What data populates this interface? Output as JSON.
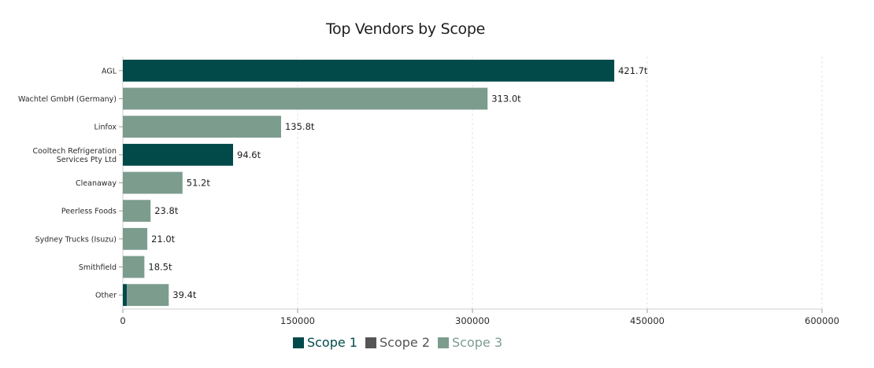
{
  "chart_data": {
    "type": "bar",
    "orientation": "horizontal",
    "stacked": true,
    "title": "Top Vendors by Scope",
    "categories": [
      "AGL",
      "Wachtel GmbH (Germany)",
      "Linfox",
      "Cooltech Refrigeration Services Pty Ltd",
      "Cleanaway",
      "Peerless Foods",
      "Sydney Trucks (Isuzu)",
      "Smithfield",
      "Other"
    ],
    "category_label_lines": [
      [
        "AGL"
      ],
      [
        "Wachtel GmbH (Germany)"
      ],
      [
        "Linfox"
      ],
      [
        "Cooltech Refrigeration",
        "Services Pty Ltd"
      ],
      [
        "Cleanaway"
      ],
      [
        "Peerless Foods"
      ],
      [
        "Sydney Trucks (Isuzu)"
      ],
      [
        "Smithfield"
      ],
      [
        "Other"
      ]
    ],
    "series": [
      {
        "name": "Scope 1",
        "color": "#024a4a",
        "values": [
          421700,
          0,
          0,
          94600,
          0,
          0,
          0,
          0,
          3500
        ]
      },
      {
        "name": "Scope 2",
        "color": "#555555",
        "values": [
          0,
          0,
          0,
          0,
          0,
          0,
          0,
          0,
          0
        ]
      },
      {
        "name": "Scope 3",
        "color": "#7c9c8e",
        "values": [
          0,
          313000,
          135800,
          0,
          51200,
          23800,
          21000,
          18500,
          35900
        ]
      }
    ],
    "total_labels": [
      "421.7t",
      "313.0t",
      "135.8t",
      "94.6t",
      "51.2t",
      "23.8t",
      "21.0t",
      "18.5t",
      "39.4t"
    ],
    "xlim": [
      0,
      600000
    ],
    "xticks": [
      0,
      150000,
      300000,
      450000,
      600000
    ],
    "xtick_labels": [
      "0",
      "150000",
      "300000",
      "450000",
      "600000"
    ],
    "xlabel": "",
    "ylabel": "",
    "grid": true,
    "legend_position": "bottom"
  }
}
